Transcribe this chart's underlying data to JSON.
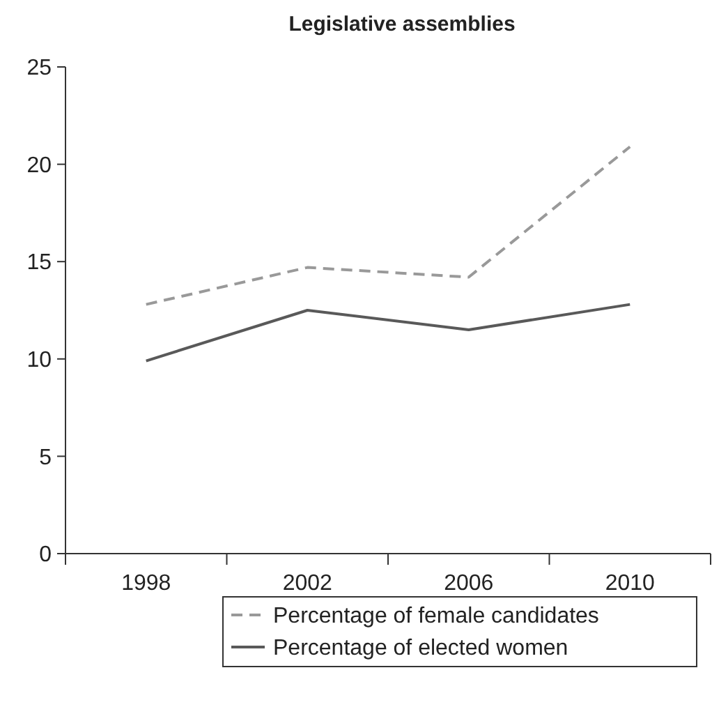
{
  "chart_data": {
    "type": "line",
    "title": "Legislative assemblies",
    "categories": [
      "1998",
      "2002",
      "2006",
      "2010"
    ],
    "series": [
      {
        "name": "Percentage of female candidates",
        "color": "#999999",
        "line_style": "dashed",
        "values": [
          12.8,
          14.7,
          14.2,
          20.9
        ]
      },
      {
        "name": "Percentage of elected women",
        "color": "#595959",
        "line_style": "solid",
        "values": [
          9.9,
          12.5,
          11.5,
          12.8
        ]
      }
    ],
    "ylim": [
      0,
      25
    ],
    "yticks": [
      0,
      5,
      10,
      15,
      20,
      25
    ],
    "grid": false,
    "legend": "bottom",
    "marker": "none"
  }
}
